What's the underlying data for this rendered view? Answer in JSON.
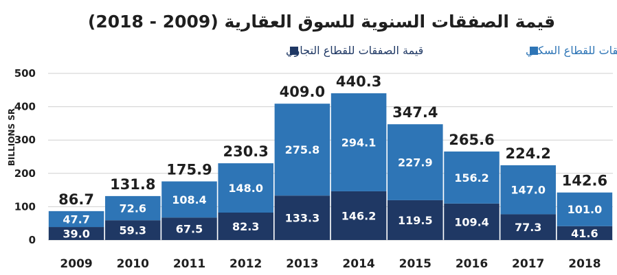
{
  "chart_data": {
    "type": "bar",
    "stacked": true,
    "title": "قيمة الصفقات السنوية للسوق العقارية (2009 - 2018)",
    "ylabel": "BILLIONS SR",
    "xlabel": "",
    "ylim": [
      0,
      500
    ],
    "yticks": [
      0,
      100,
      200,
      300,
      400,
      500
    ],
    "grid": true,
    "legend_position": "top",
    "categories": [
      "2009",
      "2010",
      "2011",
      "2012",
      "2013",
      "2014",
      "2015",
      "2016",
      "2017",
      "2018"
    ],
    "series": [
      {
        "name": "قيمة الصفقات للقطاع التجاري",
        "color": "#1f3864",
        "values": [
          39.0,
          59.3,
          67.5,
          82.3,
          133.3,
          146.2,
          119.5,
          109.4,
          77.3,
          41.6
        ]
      },
      {
        "name": "قيمة الصفقات للقطاع السكني",
        "color": "#2e75b6",
        "values": [
          47.7,
          72.6,
          108.4,
          148.0,
          275.8,
          294.1,
          227.9,
          156.2,
          147.0,
          101.0
        ]
      }
    ],
    "totals": [
      86.7,
      131.8,
      175.9,
      230.3,
      409.0,
      440.3,
      347.4,
      265.6,
      224.2,
      142.6
    ]
  }
}
